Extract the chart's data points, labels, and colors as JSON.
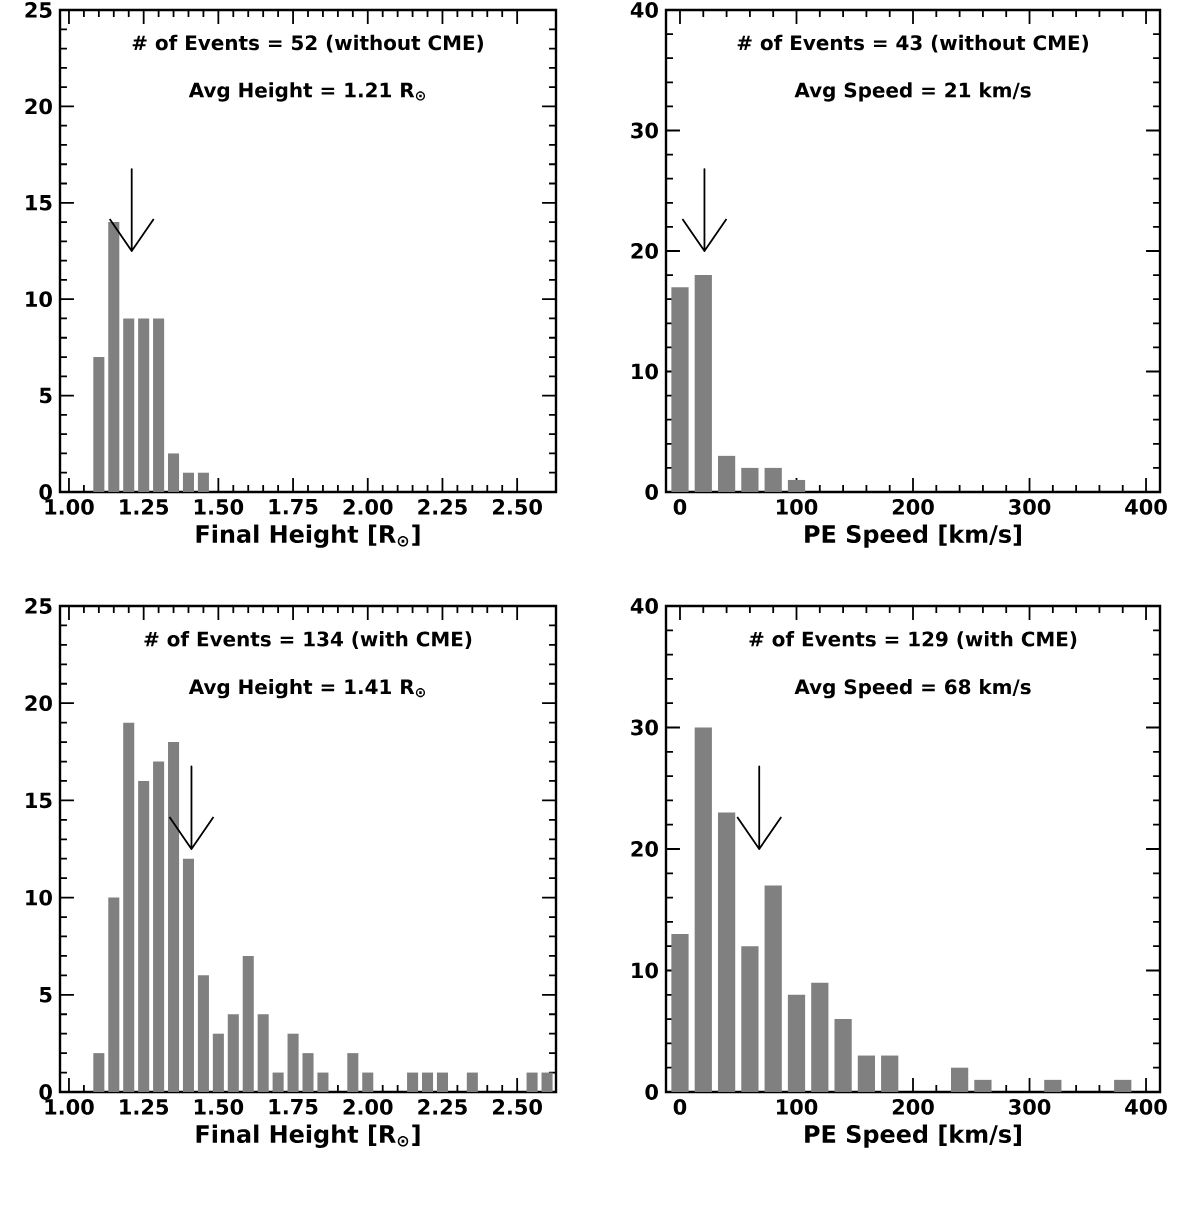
{
  "chart_data": [
    {
      "type": "histogram",
      "color": "#808080",
      "xlabel": "Final Height [R$_{⊙}$]",
      "bins": [
        1.075,
        1.125,
        1.175,
        1.225,
        1.275,
        1.325,
        1.375,
        1.425,
        1.475
      ],
      "values": [
        7,
        14,
        9,
        9,
        9,
        2,
        1,
        1
      ],
      "xlim": [
        0.97,
        2.63
      ],
      "ylim": [
        0,
        25
      ],
      "xticks": [
        {
          "value": 1.0,
          "label": "1.00"
        },
        {
          "value": 1.25,
          "label": "1.25"
        },
        {
          "value": 1.5,
          "label": "1.50"
        },
        {
          "value": 1.75,
          "label": "1.75"
        },
        {
          "value": 2.0,
          "label": "2.00"
        },
        {
          "value": 2.25,
          "label": "2.25"
        },
        {
          "value": 2.5,
          "label": "2.50"
        }
      ],
      "yticks": [
        0,
        5,
        10,
        15,
        20,
        25
      ],
      "annotations": [
        "# of Events = 52 (without CME)"
      ],
      "ref_lines": [
        {
          "axis": "x",
          "value": 1.21,
          "label": "Avg Height = 1.21 R$_{⊙}$",
          "color": "#000000"
        }
      ]
    },
    {
      "type": "histogram",
      "color": "#808080",
      "xlabel": "PE Speed [km/s]",
      "bins": [
        -10,
        10,
        30,
        50,
        70,
        90,
        110
      ],
      "values": [
        17,
        18,
        3,
        2,
        2,
        1
      ],
      "xlim": [
        -12,
        412
      ],
      "ylim": [
        0,
        40
      ],
      "xticks": [
        0,
        100,
        200,
        300,
        400
      ],
      "yticks": [
        0,
        10,
        20,
        30,
        40
      ],
      "annotations": [
        "# of Events = 43 (without CME)"
      ],
      "ref_lines": [
        {
          "axis": "x",
          "value": 21,
          "label": "Avg Speed =  21 km/s",
          "color": "#000000"
        }
      ]
    },
    {
      "type": "histogram",
      "color": "#808080",
      "xlabel": "Final Height [R$_{⊙}$]",
      "bins": [
        1.075,
        1.125,
        1.175,
        1.225,
        1.275,
        1.325,
        1.375,
        1.425,
        1.475,
        1.525,
        1.575,
        1.625,
        1.675,
        1.725,
        1.775,
        1.825,
        1.875,
        1.925,
        1.975,
        2.025,
        2.075,
        2.125,
        2.175,
        2.225,
        2.275,
        2.325,
        2.375,
        2.425,
        2.475,
        2.525,
        2.575,
        2.625
      ],
      "values": [
        2,
        10,
        19,
        16,
        17,
        18,
        12,
        6,
        3,
        4,
        7,
        4,
        1,
        3,
        2,
        1,
        0,
        2,
        1,
        0,
        0,
        1,
        1,
        1,
        0,
        1,
        0,
        0,
        0,
        1,
        1
      ],
      "xlim": [
        0.97,
        2.63
      ],
      "ylim": [
        0,
        25
      ],
      "xticks": [
        {
          "value": 1.0,
          "label": "1.00"
        },
        {
          "value": 1.25,
          "label": "1.25"
        },
        {
          "value": 1.5,
          "label": "1.50"
        },
        {
          "value": 1.75,
          "label": "1.75"
        },
        {
          "value": 2.0,
          "label": "2.00"
        },
        {
          "value": 2.25,
          "label": "2.25"
        },
        {
          "value": 2.5,
          "label": "2.50"
        }
      ],
      "yticks": [
        0,
        5,
        10,
        15,
        20,
        25
      ],
      "annotations": [
        "# of Events = 134 (with CME)"
      ],
      "ref_lines": [
        {
          "axis": "x",
          "value": 1.41,
          "label": "Avg Height = 1.41 R$_{⊙}$",
          "color": "#000000"
        }
      ]
    },
    {
      "type": "histogram",
      "color": "#808080",
      "xlabel": "PE Speed [km/s]",
      "bins": [
        -10,
        10,
        30,
        50,
        70,
        90,
        110,
        130,
        150,
        170,
        190,
        210,
        230,
        250,
        270,
        290,
        310,
        330,
        350,
        370,
        390
      ],
      "values": [
        13,
        30,
        23,
        12,
        17,
        8,
        9,
        6,
        3,
        3,
        0,
        0,
        2,
        1,
        0,
        0,
        1,
        0,
        0,
        1
      ],
      "xlim": [
        -12,
        412
      ],
      "ylim": [
        0,
        40
      ],
      "xticks": [
        0,
        100,
        200,
        300,
        400
      ],
      "yticks": [
        0,
        10,
        20,
        30,
        40
      ],
      "annotations": [
        "# of Events = 129 (with CME)"
      ],
      "ref_lines": [
        {
          "axis": "x",
          "value": 68,
          "label": "Avg Speed =  68 km/s",
          "color": "#000000"
        }
      ]
    }
  ]
}
